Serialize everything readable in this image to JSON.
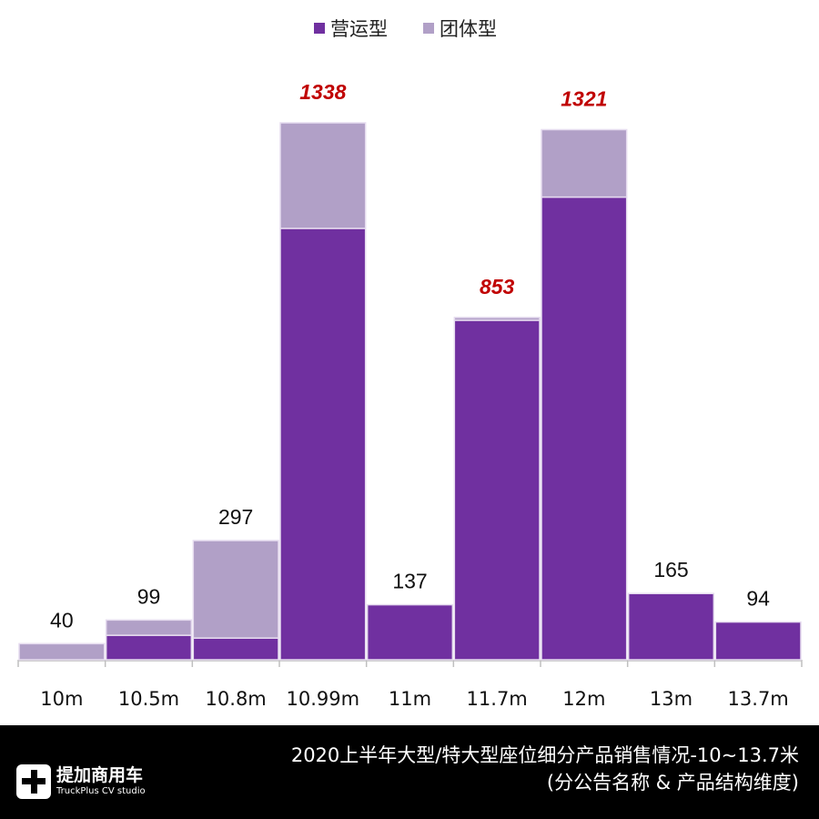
{
  "chart_data": {
    "type": "bar",
    "stacked": true,
    "categories": [
      "10m",
      "10.5m",
      "10.8m",
      "10.99m",
      "11m",
      "11.7m",
      "12m",
      "13m",
      "13.7m"
    ],
    "series": [
      {
        "name": "营运型",
        "color": "#7030a0",
        "values": [
          0,
          61,
          54,
          1075,
          137,
          846,
          1153,
          165,
          94
        ]
      },
      {
        "name": "团体型",
        "color": "#b1a0c7",
        "values": [
          40,
          38,
          243,
          263,
          0,
          7,
          168,
          0,
          0
        ]
      }
    ],
    "totals": [
      "40",
      "99",
      "297",
      "1338",
      "137",
      "853",
      "1321",
      "165",
      "94"
    ],
    "highlight_totals": [
      false,
      false,
      false,
      true,
      false,
      true,
      true,
      false,
      false
    ],
    "highlight_color": "#c00000",
    "legend_position": "top-center",
    "grid": false,
    "ylim": [
      0,
      1338
    ]
  },
  "footer": {
    "logo_cn": "提加商用车",
    "logo_en": "TruckPlus CV studio",
    "title_line1": "2020上半年大型/特大型座位细分产品销售情况-10~13.7米",
    "title_line2": "(分公告名称 & 产品结构维度)"
  }
}
